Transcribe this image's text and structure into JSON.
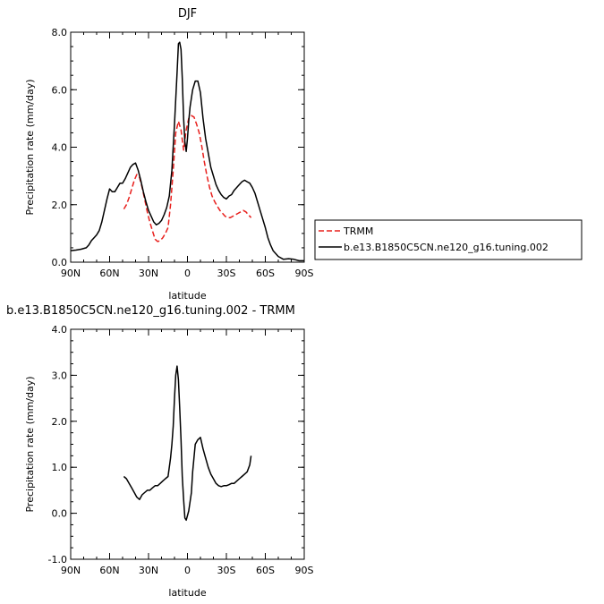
{
  "chart_data": [
    {
      "type": "line",
      "title": "DJF",
      "xlabel": "latitude",
      "ylabel": "Precipitation rate (mm/day)",
      "xlim": [
        90,
        -90
      ],
      "ylim": [
        0,
        8
      ],
      "xticks": [
        {
          "value": 90,
          "label": "90N"
        },
        {
          "value": 60,
          "label": "60N"
        },
        {
          "value": 30,
          "label": "30N"
        },
        {
          "value": 0,
          "label": "0"
        },
        {
          "value": -30,
          "label": "30S"
        },
        {
          "value": -60,
          "label": "60S"
        },
        {
          "value": -90,
          "label": "90S"
        }
      ],
      "yticks": [
        {
          "value": 0,
          "label": "0.0"
        },
        {
          "value": 2,
          "label": "2.0"
        },
        {
          "value": 4,
          "label": "4.0"
        },
        {
          "value": 6,
          "label": "6.0"
        },
        {
          "value": 8,
          "label": "8.0"
        }
      ],
      "legend": "right",
      "series": [
        {
          "name": "TRMM",
          "color": "#e8201d",
          "dash": true,
          "x": [
            49,
            47,
            45,
            43,
            41,
            39,
            37,
            35,
            33,
            31,
            29,
            27,
            25,
            23,
            21,
            19,
            17,
            15,
            13,
            11,
            9,
            7,
            5,
            3,
            1,
            -1,
            -3,
            -5,
            -7,
            -9,
            -11,
            -13,
            -15,
            -17,
            -19,
            -21,
            -23,
            -25,
            -27,
            -29,
            -31,
            -33,
            -35,
            -37,
            -39,
            -41,
            -43,
            -45,
            -47,
            -49
          ],
          "values": [
            1.85,
            2.0,
            2.25,
            2.55,
            2.85,
            3.05,
            2.95,
            2.6,
            2.2,
            1.75,
            1.4,
            1.1,
            0.8,
            0.72,
            0.75,
            0.85,
            1.0,
            1.2,
            2.0,
            3.2,
            4.5,
            4.9,
            4.6,
            3.9,
            4.6,
            5.0,
            5.1,
            5.05,
            4.8,
            4.5,
            4.05,
            3.5,
            3.0,
            2.6,
            2.3,
            2.1,
            1.95,
            1.8,
            1.7,
            1.6,
            1.55,
            1.55,
            1.6,
            1.65,
            1.7,
            1.75,
            1.8,
            1.75,
            1.65,
            1.55
          ]
        },
        {
          "name": "b.e13.B1850C5CN.ne120_g16.tuning.002",
          "color": "#000000",
          "dash": false,
          "x": [
            90,
            86,
            82,
            78,
            76,
            74,
            72,
            70,
            68,
            66,
            64,
            62,
            60,
            58,
            56,
            54,
            52,
            50,
            48,
            46,
            44,
            42,
            40,
            38,
            36,
            34,
            32,
            30,
            28,
            26,
            24,
            22,
            20,
            18,
            16,
            14,
            12,
            10,
            8,
            7,
            6,
            5,
            4,
            3,
            2,
            1,
            0,
            -1,
            -2,
            -4,
            -6,
            -8,
            -10,
            -12,
            -14,
            -16,
            -18,
            -20,
            -22,
            -24,
            -26,
            -28,
            -30,
            -32,
            -34,
            -36,
            -38,
            -40,
            -42,
            -44,
            -46,
            -48,
            -50,
            -52,
            -54,
            -56,
            -58,
            -60,
            -62,
            -64,
            -66,
            -70,
            -74,
            -78,
            -82,
            -86,
            -90
          ],
          "values": [
            0.4,
            0.42,
            0.45,
            0.5,
            0.6,
            0.75,
            0.85,
            0.95,
            1.1,
            1.4,
            1.8,
            2.2,
            2.55,
            2.45,
            2.45,
            2.6,
            2.75,
            2.75,
            2.9,
            3.1,
            3.3,
            3.4,
            3.45,
            3.2,
            2.85,
            2.45,
            2.1,
            1.8,
            1.6,
            1.4,
            1.3,
            1.35,
            1.45,
            1.65,
            1.9,
            2.3,
            3.2,
            4.8,
            6.6,
            7.6,
            7.65,
            7.4,
            6.4,
            5.0,
            4.2,
            3.85,
            4.3,
            4.9,
            5.4,
            6.0,
            6.3,
            6.3,
            5.9,
            5.0,
            4.3,
            3.8,
            3.3,
            3.0,
            2.7,
            2.5,
            2.35,
            2.25,
            2.2,
            2.3,
            2.35,
            2.5,
            2.6,
            2.7,
            2.8,
            2.85,
            2.8,
            2.75,
            2.6,
            2.4,
            2.1,
            1.8,
            1.5,
            1.2,
            0.85,
            0.6,
            0.4,
            0.2,
            0.1,
            0.12,
            0.1,
            0.05,
            0.05
          ]
        }
      ]
    },
    {
      "type": "line",
      "title": "b.e13.B1850C5CN.ne120_g16.tuning.002 - TRMM",
      "xlabel": "latitude",
      "ylabel": "Precipitation rate (mm/day)",
      "xlim": [
        90,
        -90
      ],
      "ylim": [
        -1,
        4
      ],
      "xticks": [
        {
          "value": 90,
          "label": "90N"
        },
        {
          "value": 60,
          "label": "60N"
        },
        {
          "value": 30,
          "label": "30N"
        },
        {
          "value": 0,
          "label": "0"
        },
        {
          "value": -30,
          "label": "30S"
        },
        {
          "value": -60,
          "label": "60S"
        },
        {
          "value": -90,
          "label": "90S"
        }
      ],
      "yticks": [
        {
          "value": -1,
          "label": "-1.0"
        },
        {
          "value": 0,
          "label": "0.0"
        },
        {
          "value": 1,
          "label": "1.0"
        },
        {
          "value": 2,
          "label": "2.0"
        },
        {
          "value": 3,
          "label": "3.0"
        },
        {
          "value": 4,
          "label": "4.0"
        }
      ],
      "series": [
        {
          "color": "#000000",
          "dash": false,
          "x": [
            49,
            47,
            45,
            43,
            41,
            39,
            37,
            35,
            33,
            31,
            29,
            27,
            25,
            23,
            21,
            19,
            17,
            15,
            13,
            12,
            11,
            10,
            9,
            8,
            7,
            6,
            5,
            4,
            3,
            2,
            1,
            0,
            -1,
            -2,
            -3,
            -4,
            -6,
            -8,
            -10,
            -12,
            -14,
            -16,
            -18,
            -20,
            -22,
            -24,
            -26,
            -28,
            -30,
            -32,
            -34,
            -36,
            -38,
            -40,
            -42,
            -44,
            -46,
            -48,
            -49
          ],
          "values": [
            0.8,
            0.75,
            0.65,
            0.55,
            0.45,
            0.35,
            0.3,
            0.4,
            0.45,
            0.5,
            0.5,
            0.55,
            0.6,
            0.6,
            0.65,
            0.7,
            0.75,
            0.8,
            1.2,
            1.5,
            1.9,
            2.5,
            3.0,
            3.2,
            2.9,
            2.3,
            1.6,
            0.8,
            0.3,
            -0.1,
            -0.15,
            -0.05,
            0.05,
            0.25,
            0.45,
            0.9,
            1.5,
            1.6,
            1.65,
            1.4,
            1.2,
            1.0,
            0.85,
            0.75,
            0.65,
            0.6,
            0.58,
            0.6,
            0.6,
            0.62,
            0.65,
            0.65,
            0.7,
            0.75,
            0.8,
            0.85,
            0.9,
            1.05,
            1.25
          ]
        }
      ]
    }
  ]
}
